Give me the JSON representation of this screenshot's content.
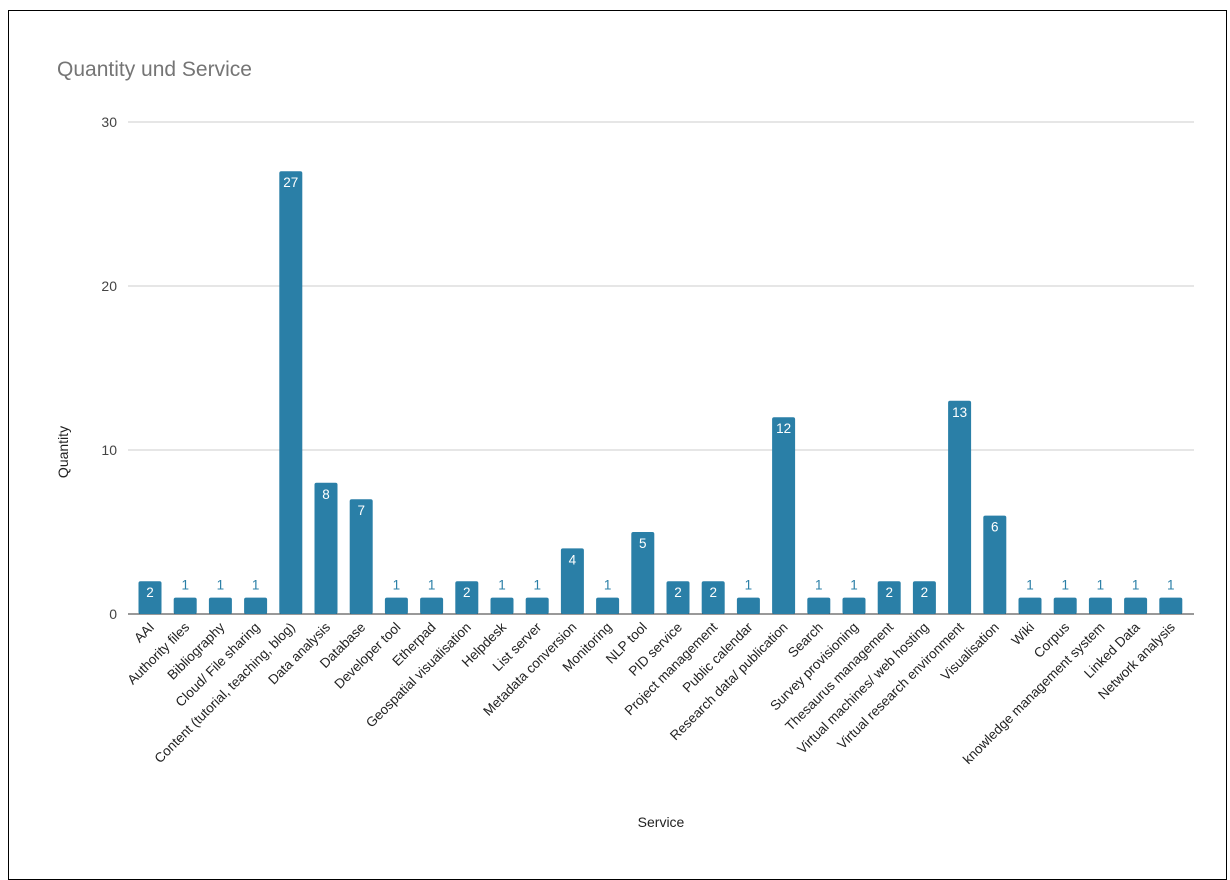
{
  "chart_data": {
    "type": "bar",
    "title": "Quantity und Service",
    "xlabel": "Service",
    "ylabel": "Quantity",
    "ylim": [
      0,
      30
    ],
    "yticks": [
      0,
      10,
      20,
      30
    ],
    "grid": true,
    "legend": "none",
    "bar_color": "#2a7fa7",
    "categories": [
      "AAI",
      "Authority files",
      "Bibliography",
      "Cloud/ File sharing",
      "Content (tutorial, teaching, blog)",
      "Data analysis",
      "Database",
      "Developer tool",
      "Etherpad",
      "Geospatial visualisation",
      "Helpdesk",
      "List server",
      "Metadata conversion",
      "Monitoring",
      "NLP tool",
      "PID service",
      "Project management",
      "Public calendar",
      "Research data/ publication",
      "Search",
      "Survey provisioning",
      "Thesaurus management",
      "Virtual machines/ web hosting",
      "Virtual research environment",
      "Visualisation",
      "Wiki",
      "Corpus",
      "knowledge management system",
      "Linked Data",
      "Network analysis"
    ],
    "values": [
      2,
      1,
      1,
      1,
      27,
      8,
      7,
      1,
      1,
      2,
      1,
      1,
      4,
      1,
      5,
      2,
      2,
      1,
      12,
      1,
      1,
      2,
      2,
      13,
      6,
      1,
      1,
      1,
      1,
      1
    ]
  }
}
